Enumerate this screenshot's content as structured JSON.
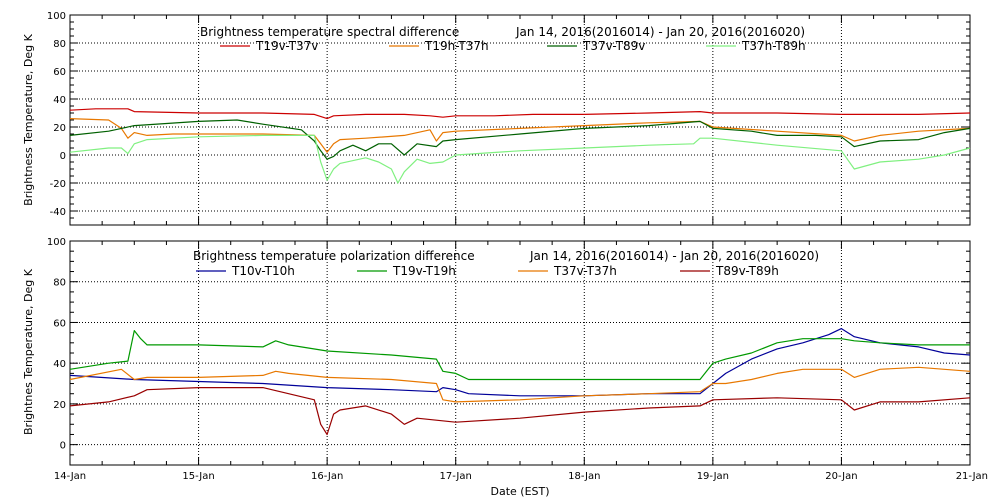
{
  "chart_data": [
    {
      "type": "line",
      "title_left": "Brightness temperature spectral difference",
      "title_right": "Jan 14, 2016(2016014) - Jan 20, 2016(2016020)",
      "ylabel": "Brightness Temperature, Deg K",
      "ylim": [
        -50,
        100
      ],
      "yticks": [
        -40,
        -20,
        0,
        20,
        40,
        60,
        80,
        100
      ],
      "xlim": [
        0,
        7
      ],
      "x_tick_labels": [
        "14-Jan",
        "15-Jan",
        "16-Jan",
        "17-Jan",
        "18-Jan",
        "19-Jan",
        "20-Jan",
        "21-Jan"
      ],
      "series": [
        {
          "name": "T19v-T37v",
          "color": "#cc0000",
          "points": [
            [
              0,
              32
            ],
            [
              0.2,
              33
            ],
            [
              0.45,
              33
            ],
            [
              0.5,
              31
            ],
            [
              1.0,
              30
            ],
            [
              1.5,
              30
            ],
            [
              1.9,
              29
            ],
            [
              2.0,
              26
            ],
            [
              2.05,
              28
            ],
            [
              2.3,
              29
            ],
            [
              2.6,
              29
            ],
            [
              2.8,
              28
            ],
            [
              2.9,
              27
            ],
            [
              3.0,
              28
            ],
            [
              3.3,
              28
            ],
            [
              3.6,
              29
            ],
            [
              4.0,
              29
            ],
            [
              4.5,
              30
            ],
            [
              4.9,
              31
            ],
            [
              5.0,
              30
            ],
            [
              5.5,
              30
            ],
            [
              6.0,
              29
            ],
            [
              6.3,
              29
            ],
            [
              6.6,
              29
            ],
            [
              7.0,
              30
            ]
          ]
        },
        {
          "name": "T19h-T37h",
          "color": "#e87800",
          "points": [
            [
              0,
              26
            ],
            [
              0.3,
              25
            ],
            [
              0.4,
              19
            ],
            [
              0.45,
              12
            ],
            [
              0.5,
              16
            ],
            [
              0.6,
              14
            ],
            [
              0.8,
              15
            ],
            [
              1.0,
              15
            ],
            [
              1.5,
              15
            ],
            [
              1.9,
              14
            ],
            [
              1.95,
              8
            ],
            [
              2.0,
              2
            ],
            [
              2.05,
              8
            ],
            [
              2.1,
              11
            ],
            [
              2.3,
              12
            ],
            [
              2.6,
              14
            ],
            [
              2.8,
              18
            ],
            [
              2.85,
              10
            ],
            [
              2.9,
              16
            ],
            [
              3.0,
              17
            ],
            [
              3.5,
              19
            ],
            [
              4.0,
              21
            ],
            [
              4.5,
              23
            ],
            [
              4.9,
              24
            ],
            [
              5.0,
              20
            ],
            [
              5.5,
              17
            ],
            [
              6.0,
              14
            ],
            [
              6.1,
              10
            ],
            [
              6.3,
              14
            ],
            [
              6.6,
              17
            ],
            [
              7.0,
              19
            ]
          ]
        },
        {
          "name": "T37v-T89v",
          "color": "#006000",
          "points": [
            [
              0,
              14
            ],
            [
              0.3,
              17
            ],
            [
              0.4,
              19
            ],
            [
              0.5,
              21
            ],
            [
              1.0,
              24
            ],
            [
              1.3,
              25
            ],
            [
              1.5,
              22
            ],
            [
              1.8,
              18
            ],
            [
              1.9,
              10
            ],
            [
              1.95,
              3
            ],
            [
              2.0,
              -3
            ],
            [
              2.05,
              -1
            ],
            [
              2.1,
              3
            ],
            [
              2.2,
              7
            ],
            [
              2.3,
              3
            ],
            [
              2.4,
              8
            ],
            [
              2.5,
              8
            ],
            [
              2.6,
              0
            ],
            [
              2.7,
              8
            ],
            [
              2.85,
              6
            ],
            [
              2.9,
              10
            ],
            [
              3.0,
              11
            ],
            [
              3.5,
              15
            ],
            [
              4.0,
              19
            ],
            [
              4.5,
              21
            ],
            [
              4.9,
              24
            ],
            [
              5.0,
              19
            ],
            [
              5.3,
              17
            ],
            [
              5.5,
              14
            ],
            [
              5.8,
              14
            ],
            [
              6.0,
              13
            ],
            [
              6.1,
              6
            ],
            [
              6.3,
              10
            ],
            [
              6.6,
              11
            ],
            [
              6.8,
              16
            ],
            [
              7.0,
              19
            ]
          ]
        },
        {
          "name": "T37h-T89h",
          "color": "#80f080",
          "points": [
            [
              0,
              2
            ],
            [
              0.3,
              5
            ],
            [
              0.4,
              5
            ],
            [
              0.45,
              1
            ],
            [
              0.5,
              8
            ],
            [
              0.6,
              11
            ],
            [
              1.0,
              13
            ],
            [
              1.5,
              14
            ],
            [
              1.9,
              14
            ],
            [
              1.95,
              -5
            ],
            [
              2.0,
              -18
            ],
            [
              2.05,
              -10
            ],
            [
              2.1,
              -6
            ],
            [
              2.3,
              -2
            ],
            [
              2.4,
              -5
            ],
            [
              2.5,
              -10
            ],
            [
              2.55,
              -20
            ],
            [
              2.6,
              -12
            ],
            [
              2.7,
              -3
            ],
            [
              2.8,
              -6
            ],
            [
              2.9,
              -5
            ],
            [
              3.0,
              0
            ],
            [
              3.5,
              3
            ],
            [
              4.0,
              5
            ],
            [
              4.5,
              7
            ],
            [
              4.85,
              8
            ],
            [
              4.9,
              12
            ],
            [
              5.0,
              12
            ],
            [
              5.5,
              7
            ],
            [
              6.0,
              3
            ],
            [
              6.1,
              -10
            ],
            [
              6.3,
              -5
            ],
            [
              6.6,
              -3
            ],
            [
              6.8,
              0
            ],
            [
              7.0,
              5
            ]
          ]
        }
      ]
    },
    {
      "type": "line",
      "title_left": "Brightness temperature polarization difference",
      "title_right": "Jan 14, 2016(2016014) - Jan 20, 2016(2016020)",
      "ylabel": "Brightnes Temperature, Deg K",
      "xlabel": "Date (EST)",
      "ylim": [
        -10,
        100
      ],
      "yticks": [
        0,
        20,
        40,
        60,
        80,
        100
      ],
      "xlim": [
        0,
        7
      ],
      "x_tick_labels": [
        "14-Jan",
        "15-Jan",
        "16-Jan",
        "17-Jan",
        "18-Jan",
        "19-Jan",
        "20-Jan",
        "21-Jan"
      ],
      "series": [
        {
          "name": "T10v-T10h",
          "color": "#000099",
          "points": [
            [
              0,
              34
            ],
            [
              0.5,
              32
            ],
            [
              1.0,
              31
            ],
            [
              1.5,
              30
            ],
            [
              2.0,
              28
            ],
            [
              2.5,
              27
            ],
            [
              2.85,
              26
            ],
            [
              2.9,
              28
            ],
            [
              3.0,
              27
            ],
            [
              3.1,
              25
            ],
            [
              3.5,
              24
            ],
            [
              4.0,
              24
            ],
            [
              4.5,
              25
            ],
            [
              4.9,
              25
            ],
            [
              5.0,
              30
            ],
            [
              5.1,
              35
            ],
            [
              5.3,
              42
            ],
            [
              5.5,
              47
            ],
            [
              5.7,
              50
            ],
            [
              5.9,
              54
            ],
            [
              6.0,
              57
            ],
            [
              6.1,
              53
            ],
            [
              6.3,
              50
            ],
            [
              6.6,
              48
            ],
            [
              6.8,
              45
            ],
            [
              7.0,
              44
            ]
          ]
        },
        {
          "name": "T19v-T19h",
          "color": "#009900",
          "points": [
            [
              0,
              37
            ],
            [
              0.3,
              40
            ],
            [
              0.45,
              41
            ],
            [
              0.5,
              56
            ],
            [
              0.55,
              52
            ],
            [
              0.6,
              49
            ],
            [
              1.0,
              49
            ],
            [
              1.5,
              48
            ],
            [
              1.6,
              51
            ],
            [
              1.7,
              49
            ],
            [
              2.0,
              46
            ],
            [
              2.5,
              44
            ],
            [
              2.85,
              42
            ],
            [
              2.9,
              36
            ],
            [
              3.0,
              35
            ],
            [
              3.1,
              32
            ],
            [
              3.5,
              32
            ],
            [
              4.0,
              32
            ],
            [
              4.5,
              32
            ],
            [
              4.9,
              32
            ],
            [
              5.0,
              40
            ],
            [
              5.1,
              42
            ],
            [
              5.3,
              45
            ],
            [
              5.5,
              50
            ],
            [
              5.7,
              52
            ],
            [
              6.0,
              52
            ],
            [
              6.1,
              51
            ],
            [
              6.3,
              50
            ],
            [
              6.6,
              49
            ],
            [
              7.0,
              49
            ]
          ]
        },
        {
          "name": "T37v-T37h",
          "color": "#e87800",
          "points": [
            [
              0,
              32
            ],
            [
              0.4,
              37
            ],
            [
              0.5,
              32
            ],
            [
              0.6,
              33
            ],
            [
              1.0,
              33
            ],
            [
              1.5,
              34
            ],
            [
              1.6,
              36
            ],
            [
              1.7,
              35
            ],
            [
              2.0,
              33
            ],
            [
              2.5,
              32
            ],
            [
              2.85,
              30
            ],
            [
              2.9,
              22
            ],
            [
              3.0,
              21
            ],
            [
              3.5,
              22
            ],
            [
              4.0,
              24
            ],
            [
              4.5,
              25
            ],
            [
              4.9,
              26
            ],
            [
              5.0,
              30
            ],
            [
              5.1,
              30
            ],
            [
              5.3,
              32
            ],
            [
              5.5,
              35
            ],
            [
              5.7,
              37
            ],
            [
              6.0,
              37
            ],
            [
              6.1,
              33
            ],
            [
              6.3,
              37
            ],
            [
              6.6,
              38
            ],
            [
              7.0,
              36
            ]
          ]
        },
        {
          "name": "T89v-T89h",
          "color": "#990000",
          "points": [
            [
              0,
              19
            ],
            [
              0.3,
              21
            ],
            [
              0.5,
              24
            ],
            [
              0.6,
              27
            ],
            [
              1.0,
              28
            ],
            [
              1.5,
              28
            ],
            [
              1.9,
              22
            ],
            [
              1.95,
              10
            ],
            [
              2.0,
              5
            ],
            [
              2.05,
              15
            ],
            [
              2.1,
              17
            ],
            [
              2.3,
              19
            ],
            [
              2.5,
              15
            ],
            [
              2.6,
              10
            ],
            [
              2.7,
              13
            ],
            [
              2.85,
              12
            ],
            [
              3.0,
              11
            ],
            [
              3.5,
              13
            ],
            [
              4.0,
              16
            ],
            [
              4.5,
              18
            ],
            [
              4.9,
              19
            ],
            [
              5.0,
              22
            ],
            [
              5.5,
              23
            ],
            [
              6.0,
              22
            ],
            [
              6.1,
              17
            ],
            [
              6.3,
              21
            ],
            [
              6.6,
              21
            ],
            [
              7.0,
              23
            ]
          ]
        }
      ]
    }
  ]
}
